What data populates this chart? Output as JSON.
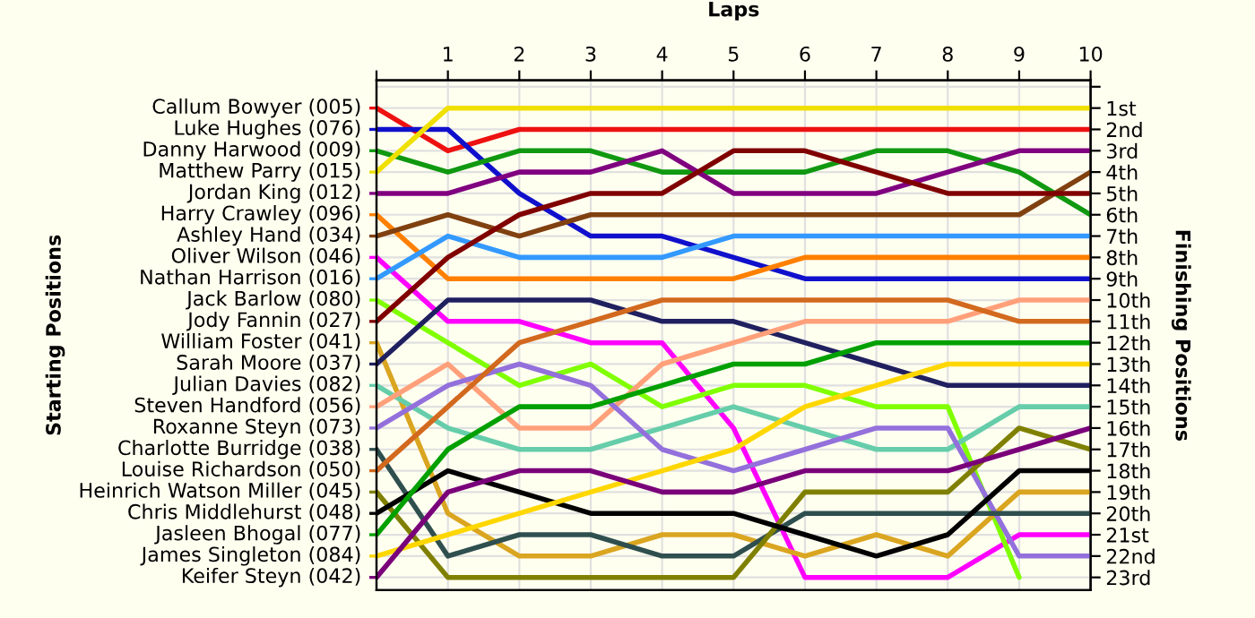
{
  "chart_data": {
    "type": "line",
    "xlabel": "Laps",
    "annotations": [
      "Starting Positions"
    ],
    "y2label": "Finishing Positions",
    "x": [
      0,
      1,
      2,
      3,
      4,
      5,
      6,
      7,
      8,
      9,
      10
    ],
    "xlim": [
      0,
      10
    ],
    "xticks": [
      {
        "value": 0,
        "label": null
      },
      1,
      2,
      3,
      4,
      5,
      6,
      7,
      8,
      9,
      10
    ],
    "legend": "left",
    "y2lim": [
      23.6,
      -0.3
    ],
    "y2ticks": [
      {
        "value": 0,
        "label": null
      },
      {
        "value": 1,
        "label": "1st"
      },
      {
        "value": 2,
        "label": "2nd"
      },
      {
        "value": 3,
        "label": "3rd"
      },
      {
        "value": 4,
        "label": "4th"
      },
      {
        "value": 5,
        "label": "5th"
      },
      {
        "value": 6,
        "label": "6th"
      },
      {
        "value": 7,
        "label": "7th"
      },
      {
        "value": 8,
        "label": "8th"
      },
      {
        "value": 9,
        "label": "9th"
      },
      {
        "value": 10,
        "label": "10th"
      },
      {
        "value": 11,
        "label": "11th"
      },
      {
        "value": 12,
        "label": "12th"
      },
      {
        "value": 13,
        "label": "13th"
      },
      {
        "value": 14,
        "label": "14th"
      },
      {
        "value": 15,
        "label": "15th"
      },
      {
        "value": 16,
        "label": "16th"
      },
      {
        "value": 17,
        "label": "17th"
      },
      {
        "value": 18,
        "label": "18th"
      },
      {
        "value": 19,
        "label": "19th"
      },
      {
        "value": 20,
        "label": "20th"
      },
      {
        "value": 21,
        "label": "21st"
      },
      {
        "value": 22,
        "label": "22nd"
      },
      {
        "value": 23,
        "label": "23rd"
      }
    ],
    "grid": true,
    "series": [
      {
        "name": "Callum Bowyer (005)",
        "axis": "y2",
        "color": "#ee1111",
        "values": [
          1,
          3,
          2,
          2,
          2,
          2,
          2,
          2,
          2,
          2,
          2
        ]
      },
      {
        "name": "Luke Hughes (076)",
        "axis": "y2",
        "color": "#1010cc",
        "values": [
          2,
          2,
          5,
          7,
          7,
          8,
          9,
          9,
          9,
          9,
          9
        ]
      },
      {
        "name": "Danny Harwood (009)",
        "axis": "y2",
        "color": "#109910",
        "values": [
          3,
          4,
          3,
          3,
          4,
          4,
          4,
          3,
          3,
          4,
          6
        ]
      },
      {
        "name": "Matthew Parry (015)",
        "axis": "y2",
        "color": "#f0e000",
        "values": [
          4,
          1,
          1,
          1,
          1,
          1,
          1,
          1,
          1,
          1,
          1
        ]
      },
      {
        "name": "Jordan King (012)",
        "axis": "y2",
        "color": "#800080",
        "values": [
          5,
          5,
          4,
          4,
          3,
          5,
          5,
          5,
          4,
          3,
          3
        ]
      },
      {
        "name": "Harry Crawley (096)",
        "axis": "y2",
        "color": "#ff8000",
        "values": [
          6,
          9,
          9,
          9,
          9,
          9,
          8,
          8,
          8,
          8,
          8
        ]
      },
      {
        "name": "Ashley Hand (034)",
        "axis": "y2",
        "color": "#804010",
        "values": [
          7,
          6,
          7,
          6,
          6,
          6,
          6,
          6,
          6,
          6,
          4
        ]
      },
      {
        "name": "Oliver Wilson (046)",
        "axis": "y2",
        "color": "#ff00ff",
        "values": [
          8,
          11,
          11,
          12,
          12,
          16,
          23,
          23,
          23,
          21,
          21
        ]
      },
      {
        "name": "Nathan Harrison (016)",
        "axis": "y2",
        "color": "#3399ff",
        "values": [
          9,
          7,
          8,
          8,
          8,
          7,
          7,
          7,
          7,
          7,
          7
        ]
      },
      {
        "name": "Jack Barlow (080)",
        "axis": "y2",
        "color": "#80ff00",
        "values": [
          10,
          12,
          14,
          13,
          15,
          14,
          14,
          15,
          15,
          23,
          null
        ]
      },
      {
        "name": "Jody Fannin (027)",
        "axis": "y2",
        "color": "#800000",
        "values": [
          11,
          8,
          6,
          5,
          5,
          3,
          3,
          4,
          5,
          5,
          5
        ]
      },
      {
        "name": "William Foster (041)",
        "axis": "y2",
        "color": "#daa520",
        "values": [
          12,
          20,
          22,
          22,
          21,
          21,
          22,
          21,
          22,
          19,
          19
        ]
      },
      {
        "name": "Sarah Moore (037)",
        "axis": "y2",
        "color": "#202060",
        "values": [
          13,
          10,
          10,
          10,
          11,
          11,
          12,
          13,
          14,
          14,
          14
        ]
      },
      {
        "name": "Julian Davies (082)",
        "axis": "y2",
        "color": "#66cdaa",
        "values": [
          14,
          16,
          17,
          17,
          16,
          15,
          16,
          17,
          17,
          15,
          15
        ]
      },
      {
        "name": "Steven Handford (056)",
        "axis": "y2",
        "color": "#ffa07a",
        "values": [
          15,
          13,
          16,
          16,
          13,
          12,
          11,
          11,
          11,
          10,
          10
        ]
      },
      {
        "name": "Roxanne Steyn (073)",
        "axis": "y2",
        "color": "#9370db",
        "values": [
          16,
          14,
          13,
          14,
          17,
          18,
          17,
          16,
          16,
          22,
          22
        ]
      },
      {
        "name": "Charlotte Burridge (038)",
        "axis": "y2",
        "color": "#2f4f4f",
        "values": [
          17,
          22,
          21,
          21,
          22,
          22,
          20,
          20,
          20,
          20,
          20
        ]
      },
      {
        "name": "Louise Richardson (050)",
        "axis": "y2",
        "color": "#d2691e",
        "values": [
          18,
          15,
          12,
          11,
          10,
          10,
          10,
          10,
          10,
          11,
          11
        ]
      },
      {
        "name": "Heinrich Watson Miller (045)",
        "axis": "y2",
        "color": "#808000",
        "values": [
          19,
          23,
          23,
          23,
          23,
          23,
          19,
          19,
          19,
          16,
          17
        ]
      },
      {
        "name": "Chris Middlehurst (048)",
        "axis": "y2",
        "color": "#000000",
        "values": [
          20,
          18,
          19,
          20,
          20,
          20,
          21,
          22,
          21,
          18,
          18
        ]
      },
      {
        "name": "Jasleen Bhogal (077)",
        "axis": "y2",
        "color": "#00a000",
        "values": [
          21,
          17,
          15,
          15,
          14,
          13,
          13,
          12,
          12,
          12,
          12
        ]
      },
      {
        "name": "James Singleton (084)",
        "axis": "y2",
        "color": "#ffd700",
        "values": [
          22,
          21,
          20,
          19,
          18,
          17,
          15,
          14,
          13,
          13,
          13
        ]
      },
      {
        "name": "Keifer Steyn (042)",
        "axis": "y2",
        "color": "#7a007a",
        "values": [
          23,
          19,
          18,
          18,
          19,
          19,
          18,
          18,
          18,
          17,
          16
        ]
      }
    ]
  }
}
